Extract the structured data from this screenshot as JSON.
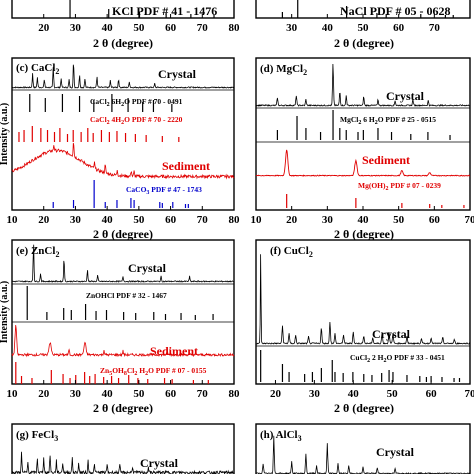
{
  "chart_data": [
    {
      "id": "a",
      "type": "bar",
      "xlabel": "2 θ (degree)",
      "xticks": [
        20,
        30,
        40,
        50,
        60,
        70,
        80
      ],
      "xlim": [
        10,
        80
      ],
      "refs": [
        {
          "label": "KCl PDF # 41 - 1476",
          "color": "#000000",
          "positions": [
            28.3,
            40.5,
            50.2,
            58.6,
            66.4,
            73.7
          ]
        }
      ]
    },
    {
      "id": "b",
      "type": "bar",
      "xlabel": "2 θ (degree)",
      "xticks": [
        30,
        40,
        50,
        60,
        70
      ],
      "xlim": [
        20,
        80
      ],
      "refs": [
        {
          "label": "NaCl PDF # 05 - 0628",
          "color": "#000000",
          "positions": [
            27.4,
            31.7,
            45.4,
            53.9,
            56.5,
            66.2,
            73.1,
            75.3
          ]
        }
      ]
    },
    {
      "id": "c",
      "type": "line",
      "title": "(c)",
      "salt": "CaCl",
      "salt_sub": "2",
      "ylabel": "Intensity (a.u.)",
      "xlabel": "2 θ (degree)",
      "xticks": [
        10,
        20,
        30,
        40,
        50,
        60,
        70,
        80
      ],
      "xlim": [
        10,
        80
      ],
      "series": [
        {
          "name": "Crystal",
          "color": "#000000"
        },
        {
          "name": "Sediment",
          "color": "#e00000"
        }
      ],
      "refs": [
        {
          "label": "CaCl",
          "sub": "2",
          "rest": " 6H",
          "sub2": "2",
          "rest2": "O PDF # 70 - 0491",
          "color": "#000000",
          "positions": [
            15.6,
            20.5,
            25.9,
            31.3,
            35.8,
            41.5,
            46.6,
            51.2,
            54.6,
            60.4
          ]
        },
        {
          "label": "CaCl",
          "sub": "2",
          "rest": " 4H",
          "sub2": "2",
          "rest2": "O PDF # 70 - 2220",
          "color": "#e00000",
          "positions": [
            12.2,
            13.8,
            16.4,
            19.1,
            21.2,
            23.4,
            25.1,
            27.5,
            29.3,
            31.8,
            33.9,
            35.6,
            38.2,
            40.7,
            43.1,
            45.8,
            48.9,
            52.3,
            57.4,
            62.6
          ]
        },
        {
          "label": "CaCO",
          "sub": "3",
          "rest": " PDF # 47 - 1743",
          "sub2": "",
          "rest2": "",
          "color": "#0000cc",
          "positions": [
            23.0,
            29.4,
            35.9,
            39.4,
            43.1,
            47.5,
            48.5,
            56.6,
            57.4,
            60.7,
            64.7,
            65.6
          ]
        }
      ]
    },
    {
      "id": "d",
      "type": "line",
      "title": "(d)",
      "salt": "MgCl",
      "salt_sub": "2",
      "xlabel": "2 θ (degree)",
      "xticks": [
        10,
        20,
        30,
        40,
        50,
        60,
        70
      ],
      "xlim": [
        10,
        70
      ],
      "series": [
        {
          "name": "Crystal",
          "color": "#000000"
        },
        {
          "name": "Sediment",
          "color": "#e00000"
        }
      ],
      "refs": [
        {
          "label": "MgCl",
          "sub": "2",
          "rest": " 6 H",
          "sub2": "2",
          "rest2": "O PDF # 25 - 0515",
          "color": "#000000",
          "positions": [
            16.0,
            21.5,
            24.0,
            28.1,
            31.6,
            33.5,
            35.3,
            38.6,
            40.1,
            44.2,
            48.0,
            53.4,
            58.2,
            64.4
          ]
        },
        {
          "label": "Mg(OH)",
          "sub": "2",
          "rest": " PDF # 07 - 0239",
          "sub2": "",
          "rest2": "",
          "color": "#e00000",
          "positions": [
            18.6,
            38.0,
            50.9,
            58.7,
            62.1,
            68.3
          ]
        }
      ]
    },
    {
      "id": "e",
      "type": "line",
      "title": "(e)",
      "salt": "ZnCl",
      "salt_sub": "2",
      "ylabel": "Intensity (a.u.)",
      "xlabel": "2 θ (degree)",
      "xticks": [
        10,
        20,
        30,
        40,
        50,
        60,
        70,
        80
      ],
      "xlim": [
        10,
        80
      ],
      "series": [
        {
          "name": "Crystal",
          "color": "#000000"
        },
        {
          "name": "Sediment",
          "color": "#e00000"
        }
      ],
      "refs": [
        {
          "label": "ZnOHCl PDF # 32 - 1467",
          "sub": "",
          "rest": "",
          "sub2": "",
          "rest2": "",
          "color": "#000000",
          "positions": [
            14.8,
            21.0,
            26.3,
            28.7,
            33.2,
            36.5,
            39.8,
            45.2,
            49.0,
            54.7,
            58.4,
            63.3,
            67.8,
            73.4
          ]
        },
        {
          "label": "Zn",
          "sub": "5",
          "rest": "OH",
          "sub2": "8",
          "rest2": "Cl",
          "sub3": "2",
          "rest3": " H",
          "sub4": "2",
          "rest4": "O PDF # 07 - 0155",
          "color": "#e00000",
          "positions": [
            11.2,
            13.0,
            16.3,
            22.4,
            26.1,
            28.3,
            30.1,
            32.9,
            34.5,
            36.2,
            38.9,
            41.4,
            43.6,
            46.8,
            49.7,
            52.8,
            58.1,
            60.5,
            67.2,
            71.9
          ]
        }
      ]
    },
    {
      "id": "f",
      "type": "line",
      "title": "(f)",
      "salt": "CuCl",
      "salt_sub": "2",
      "xlabel": "2 θ (degree)",
      "xticks": [
        20,
        30,
        40,
        50,
        60,
        70
      ],
      "xlim": [
        15,
        70
      ],
      "series": [
        {
          "name": "Crystal",
          "color": "#000000"
        }
      ],
      "refs": [
        {
          "label": "CuCl",
          "sub": "2",
          "rest": " 2 H",
          "sub2": "2",
          "rest2": "O PDF # 33 - 0451",
          "color": "#000000",
          "positions": [
            16.2,
            21.8,
            23.5,
            27.5,
            29.5,
            31.8,
            34.6,
            35.3,
            37.4,
            39.9,
            42.7,
            44.8,
            47.3,
            49.2,
            50.2,
            53.8,
            57.1,
            58.8,
            60.0,
            62.8,
            65.9,
            67.3
          ]
        }
      ]
    },
    {
      "id": "g",
      "type": "line",
      "title": "(g)",
      "salt": "FeCl",
      "salt_sub": "3",
      "series": [
        {
          "name": "Crystal",
          "color": "#000000"
        }
      ]
    },
    {
      "id": "h",
      "type": "line",
      "title": "(h)",
      "salt": "AlCl",
      "salt_sub": "3",
      "series": [
        {
          "name": "Crystal",
          "color": "#000000"
        }
      ]
    }
  ]
}
